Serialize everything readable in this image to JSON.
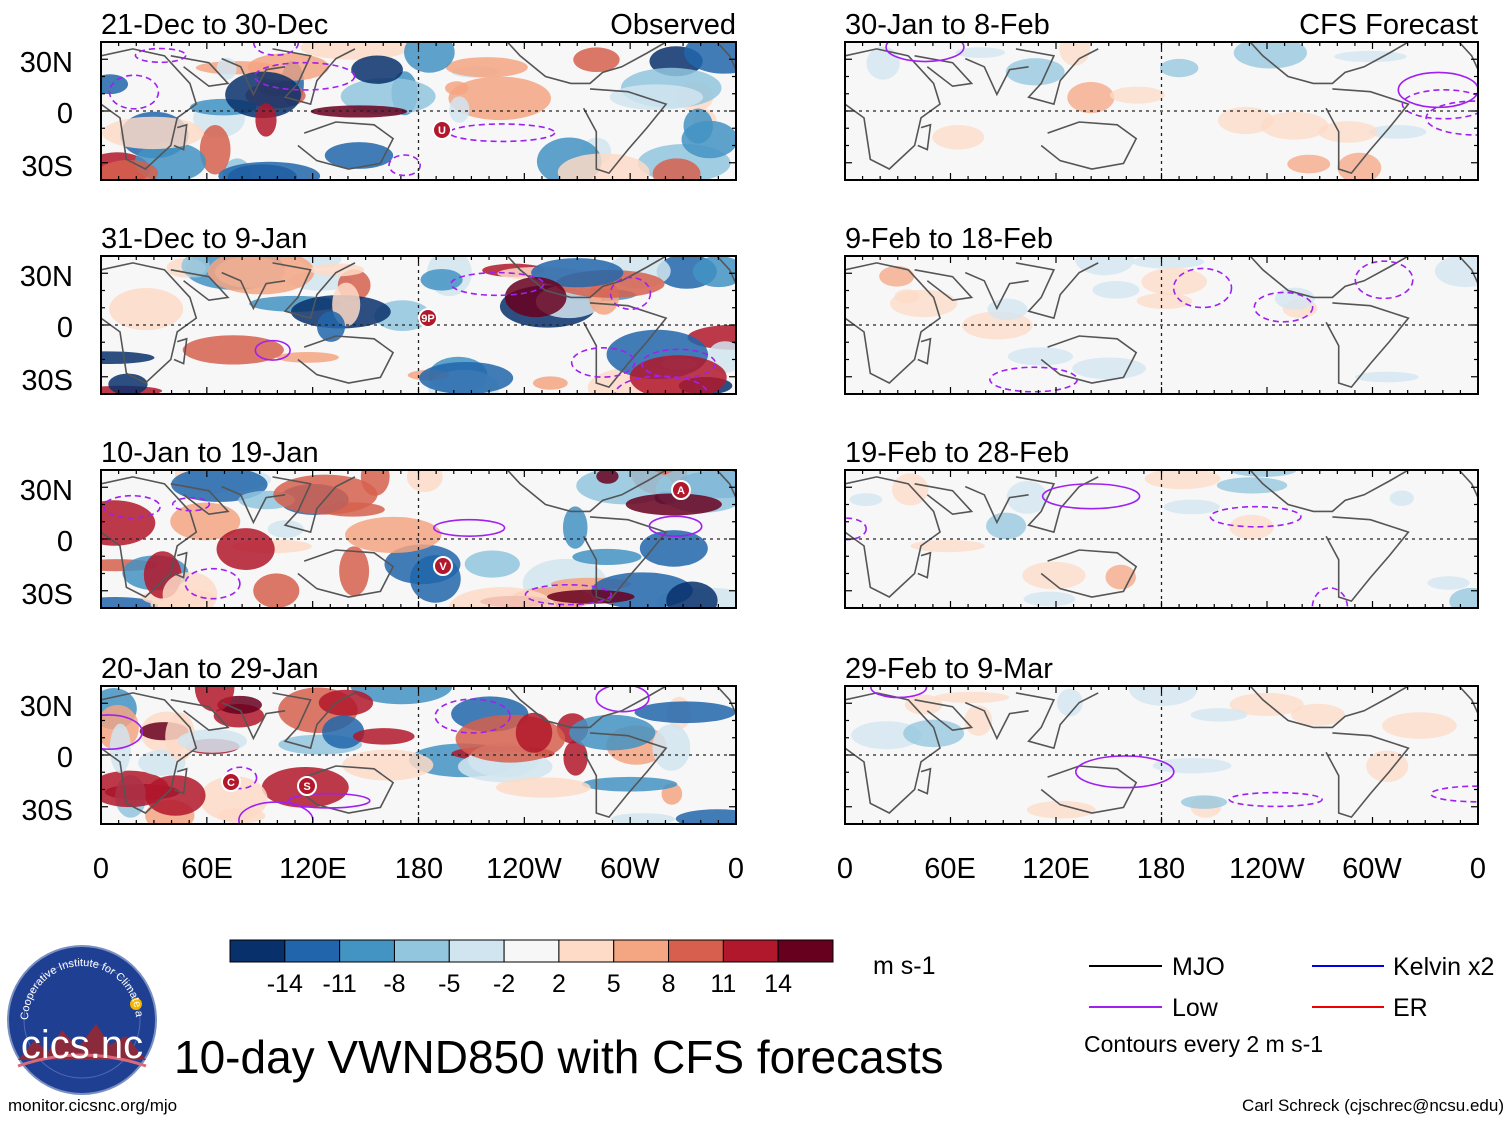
{
  "chart_data": {
    "type": "heatmap",
    "title": "10-day VWND850 with CFS forecasts",
    "variable": "VWND850",
    "units": "m s-1",
    "x_ticks": [
      "0",
      "60E",
      "120E",
      "180",
      "120W",
      "60W",
      "0"
    ],
    "y_ticks": [
      "30N",
      "0",
      "30S"
    ],
    "observed_label": "Observed",
    "forecast_label": "CFS Forecast",
    "observed_periods": [
      "21-Dec to 30-Dec",
      "31-Dec to 9-Jan",
      "10-Jan to 19-Jan",
      "20-Jan to 29-Jan"
    ],
    "forecast_periods": [
      "30-Jan to 8-Feb",
      "9-Feb to 18-Feb",
      "19-Feb to 28-Feb",
      "29-Feb to 9-Mar"
    ],
    "colorbar": {
      "levels": [
        -14,
        -11,
        -8,
        -5,
        -2,
        2,
        5,
        8,
        11,
        14
      ],
      "tick_labels": [
        "-14",
        "-11",
        "-8",
        "-5",
        "-2",
        "2",
        "5",
        "8",
        "11",
        "14"
      ],
      "colors": [
        "#08306b",
        "#2166ac",
        "#4393c3",
        "#92c5de",
        "#d1e5f0",
        "#f7f7f7",
        "#fddbc7",
        "#f4a582",
        "#d6604d",
        "#b2182b",
        "#67001f"
      ]
    },
    "legend": [
      {
        "label": "MJO",
        "color": "#000000"
      },
      {
        "label": "Kelvin x2",
        "color": "#0000ee"
      },
      {
        "label": "Low",
        "color": "#a020f0"
      },
      {
        "label": "ER",
        "color": "#ee0000"
      }
    ],
    "contour_note": "Contours every 2 m s-1",
    "storm_markers": [
      {
        "panel": 0,
        "label": "U"
      },
      {
        "panel": 1,
        "label": "9P"
      },
      {
        "panel": 2,
        "label": "A"
      },
      {
        "panel": 2,
        "label": "V"
      },
      {
        "panel": 3,
        "label": "C"
      },
      {
        "panel": 3,
        "label": "S"
      }
    ]
  },
  "branding": {
    "logo_text": "cics.nc",
    "logo_ring_text": "Cooperative Institute for Climate and Satellites",
    "url": "monitor.cicsnc.org/mjo",
    "credit": "Carl Schreck (cjschrec@ncsu.edu)"
  }
}
